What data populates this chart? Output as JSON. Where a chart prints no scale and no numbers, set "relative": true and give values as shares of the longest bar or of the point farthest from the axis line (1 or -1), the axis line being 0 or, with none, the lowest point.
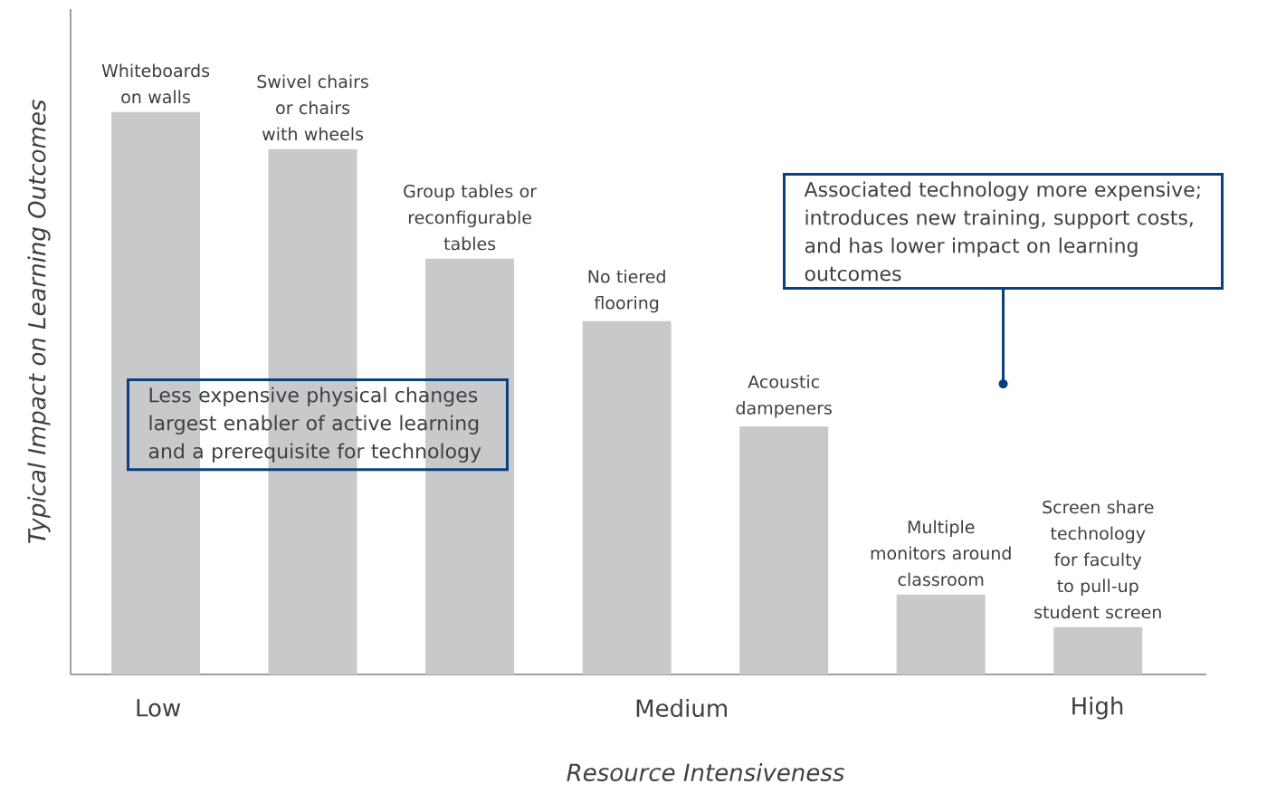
{
  "chart_data": {
    "type": "bar",
    "relative": true,
    "color": "#c8c9cb",
    "categories": [
      "Whiteboards on walls",
      "Swivel chairs or chairs with wheels",
      "Group tables or reconfigurable tables",
      "No tiered flooring",
      "Acoustic dampeners",
      "Multiple monitors around classroom",
      "Screen share technology for faculty to pull-up student screen"
    ],
    "values": [
      1,
      0.934,
      0.739,
      0.628,
      0.441,
      0.142,
      0.084
    ],
    "xlabel": "Resource Intensiveness",
    "ylabel": "Typical Impact on Learning Outcomes",
    "annotations": [
      "Low",
      "Medium",
      "High",
      "Less expensive physical changes largest enabler of active learning and a prerequisite for technology",
      "Associated technology more expensive; introduces new training, support costs, and has lower impact on learning outcomes"
    ]
  }
}
